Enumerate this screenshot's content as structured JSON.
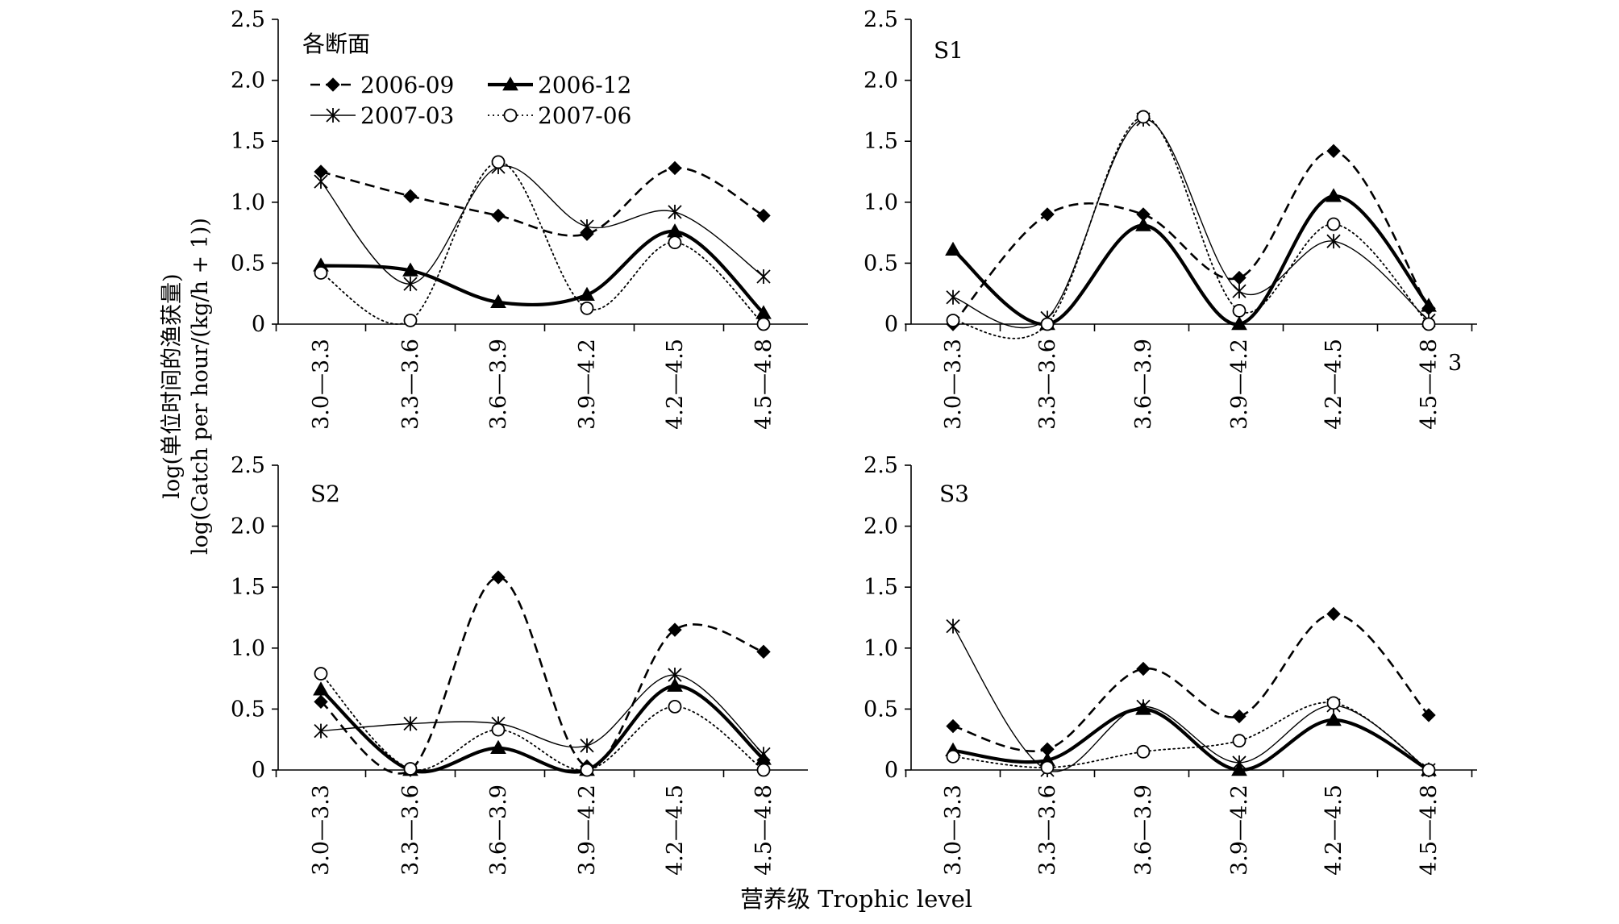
{
  "figure": {
    "ylabel_cn": "log(单位时间的渔获量)",
    "ylabel_en": "log(Catch per hour/(kg/h + 1))",
    "xlabel": "营养级 Trophic level",
    "stray_mark": "3"
  },
  "series_styles": {
    "2006-09": {
      "dash": "12,7",
      "width": 2.6,
      "marker": "diamond"
    },
    "2006-12": {
      "dash": "",
      "width": 4.2,
      "marker": "triangle"
    },
    "2007-03": {
      "dash": "",
      "width": 1.4,
      "marker": "asterisk"
    },
    "2007-06": {
      "dash": "2,4",
      "width": 1.8,
      "marker": "circle"
    }
  },
  "legend": [
    {
      "name": "2006-09"
    },
    {
      "name": "2006-12"
    },
    {
      "name": "2007-03"
    },
    {
      "name": "2007-06"
    }
  ],
  "chart_data": [
    {
      "type": "line",
      "label": "各断面",
      "categories": [
        "3.0—3.3",
        "3.3—3.6",
        "3.6—3.9",
        "3.9—4.2",
        "4.2—4.5",
        "4.5—4.8"
      ],
      "ylim": [
        0,
        2.5
      ],
      "yticks": [
        "0",
        "0.5",
        "1.0",
        "1.5",
        "2.0",
        "2.5"
      ],
      "grid": false,
      "legend_position": "top-left",
      "series": [
        {
          "name": "2006-09",
          "values": [
            1.25,
            1.05,
            0.89,
            0.74,
            1.28,
            0.89
          ]
        },
        {
          "name": "2006-12",
          "values": [
            0.48,
            0.44,
            0.18,
            0.24,
            0.76,
            0.09
          ]
        },
        {
          "name": "2007-03",
          "values": [
            1.17,
            0.33,
            1.29,
            0.8,
            0.92,
            0.39
          ]
        },
        {
          "name": "2007-06",
          "values": [
            0.42,
            0.03,
            1.33,
            0.13,
            0.67,
            0.0
          ]
        }
      ]
    },
    {
      "type": "line",
      "label": "S1",
      "categories": [
        "3.0—3.3",
        "3.3—3.6",
        "3.6—3.9",
        "3.9—4.2",
        "4.2—4.5",
        "4.5—4.8"
      ],
      "ylim": [
        0,
        2.5
      ],
      "yticks": [
        "0",
        "0.5",
        "1.0",
        "1.5",
        "2.0",
        "2.5"
      ],
      "grid": false,
      "series": [
        {
          "name": "2006-09",
          "values": [
            0.0,
            0.9,
            0.9,
            0.38,
            1.42,
            0.13
          ]
        },
        {
          "name": "2006-12",
          "values": [
            0.61,
            0.0,
            0.81,
            0.0,
            1.05,
            0.15
          ]
        },
        {
          "name": "2007-03",
          "values": [
            0.22,
            0.05,
            1.68,
            0.27,
            0.68,
            0.03
          ]
        },
        {
          "name": "2007-06",
          "values": [
            0.03,
            0.0,
            1.7,
            0.11,
            0.82,
            0.0
          ]
        }
      ]
    },
    {
      "type": "line",
      "label": "S2",
      "categories": [
        "3.0—3.3",
        "3.3—3.6",
        "3.6—3.9",
        "3.9—4.2",
        "4.2—4.5",
        "4.5—4.8"
      ],
      "ylim": [
        0,
        2.5
      ],
      "yticks": [
        "0",
        "0.5",
        "1.0",
        "1.5",
        "2.0",
        "2.5"
      ],
      "grid": false,
      "series": [
        {
          "name": "2006-09",
          "values": [
            0.56,
            0.0,
            1.58,
            0.03,
            1.15,
            0.97
          ]
        },
        {
          "name": "2006-12",
          "values": [
            0.66,
            0.0,
            0.18,
            0.0,
            0.69,
            0.09
          ]
        },
        {
          "name": "2007-03",
          "values": [
            0.32,
            0.38,
            0.38,
            0.2,
            0.78,
            0.13
          ]
        },
        {
          "name": "2007-06",
          "values": [
            0.79,
            0.01,
            0.33,
            0.0,
            0.52,
            0.0
          ]
        }
      ]
    },
    {
      "type": "line",
      "label": "S3",
      "categories": [
        "3.0—3.3",
        "3.3—3.6",
        "3.6—3.9",
        "3.9—4.2",
        "4.2—4.5",
        "4.5—4.8"
      ],
      "ylim": [
        0,
        2.5
      ],
      "yticks": [
        "0",
        "0.5",
        "1.0",
        "1.5",
        "2.0",
        "2.5"
      ],
      "grid": false,
      "series": [
        {
          "name": "2006-09",
          "values": [
            0.36,
            0.17,
            0.83,
            0.44,
            1.28,
            0.45
          ]
        },
        {
          "name": "2006-12",
          "values": [
            0.16,
            0.08,
            0.5,
            0.0,
            0.41,
            0.0
          ]
        },
        {
          "name": "2007-03",
          "values": [
            1.18,
            0.0,
            0.52,
            0.06,
            0.53,
            0.0
          ]
        },
        {
          "name": "2007-06",
          "values": [
            0.11,
            0.02,
            0.15,
            0.24,
            0.55,
            0.0
          ]
        }
      ]
    }
  ]
}
